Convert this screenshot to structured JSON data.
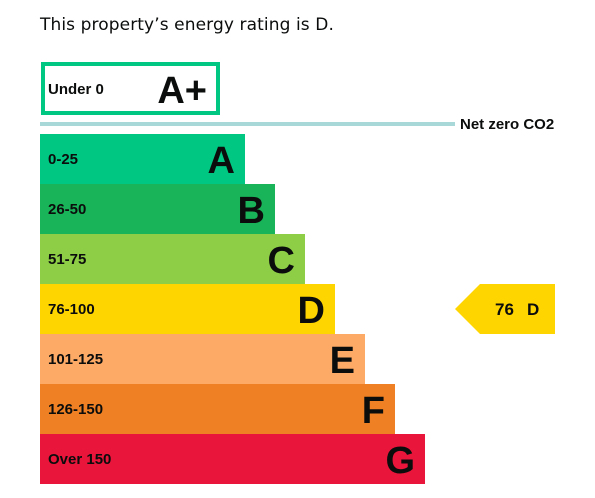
{
  "intro_text": "This property’s energy rating is D.",
  "chart_data": {
    "type": "bar",
    "title": "",
    "orientation": "horizontal",
    "bands": [
      {
        "range": "Under 0",
        "letter": "A+",
        "color": "#00c781",
        "outlined": true
      },
      {
        "range": "0-25",
        "letter": "A",
        "color": "#00c781"
      },
      {
        "range": "26-50",
        "letter": "B",
        "color": "#19b459"
      },
      {
        "range": "51-75",
        "letter": "C",
        "color": "#8dce46"
      },
      {
        "range": "76-100",
        "letter": "D",
        "color": "#ffd500"
      },
      {
        "range": "101-125",
        "letter": "E",
        "color": "#fcaa65"
      },
      {
        "range": "126-150",
        "letter": "F",
        "color": "#ef8023"
      },
      {
        "range": "Over 150",
        "letter": "G",
        "color": "#e9153b"
      }
    ],
    "net_zero": {
      "label": "Net zero CO2",
      "color": "#a8d8d8"
    },
    "current_rating": {
      "score": 76,
      "band": "D",
      "color": "#ffd500"
    }
  }
}
